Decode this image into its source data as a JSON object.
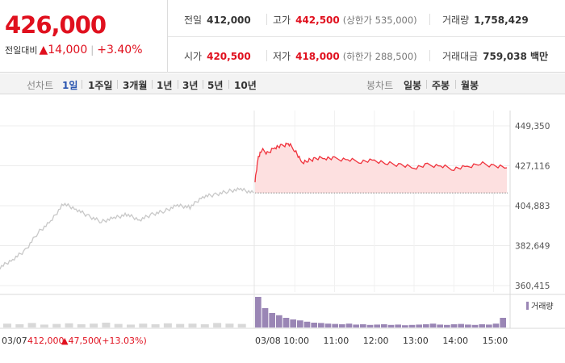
{
  "quote": {
    "price": "426,000",
    "change_label": "전일대비",
    "change_amount": "▲14,000",
    "change_percent": "+3.40%",
    "prev_close_label": "전일",
    "prev_close": "412,000",
    "high_label": "고가",
    "high": "442,500",
    "upper_limit": "(상한가 535,000)",
    "volume_label": "거래량",
    "volume": "1,758,429",
    "open_label": "시가",
    "open": "420,500",
    "low_label": "저가",
    "low": "418,000",
    "lower_limit": "(하한가 288,500)",
    "amount_label": "거래대금",
    "amount": "759,038 백만"
  },
  "toolbar": {
    "line_label": "선차트",
    "periods": [
      "1일",
      "1주일",
      "3개월",
      "1년",
      "3년",
      "5년",
      "10년"
    ],
    "candle_label": "봉차트",
    "candles": [
      "일봉",
      "주봉",
      "월봉"
    ]
  },
  "prev_day_info": {
    "date": "03/07",
    "price": "412,000",
    "change": "▲47,500",
    "percent": "(+13.03%)"
  },
  "volume_legend": "거래량",
  "colors": {
    "up": "#e0101e",
    "line_today": "#f0323c",
    "fill_today": "#fde0e0",
    "line_prev": "#c8c8c8",
    "volume": "#9a86b5"
  },
  "chart_data": {
    "type": "line",
    "y_ticks": [
      449350,
      427116,
      404883,
      382649,
      360415
    ],
    "ylim": [
      360415,
      449350
    ],
    "x_labels": [
      "03/07",
      "03/08",
      "10:00",
      "11:00",
      "12:00",
      "13:00",
      "14:00",
      "15:00"
    ],
    "reference_price": 412000,
    "series": [
      {
        "date": "03/07",
        "x": [
          0,
          0.05,
          0.1,
          0.15,
          0.2,
          0.25,
          0.3,
          0.35,
          0.4,
          0.45,
          0.5,
          0.55,
          0.6,
          0.65,
          0.7,
          0.75,
          0.8,
          0.85,
          0.9,
          0.95,
          1.0
        ],
        "y": [
          370500,
          375000,
          380000,
          390000,
          396000,
          406000,
          403000,
          399000,
          396000,
          398000,
          400000,
          397000,
          400000,
          402000,
          405000,
          404000,
          410000,
          411000,
          413000,
          414000,
          412000
        ]
      },
      {
        "date": "03/08",
        "time": [
          "09:00",
          "09:05",
          "09:10",
          "09:20",
          "09:30",
          "09:40",
          "09:50",
          "10:00",
          "10:10",
          "10:20",
          "10:30",
          "10:45",
          "11:00",
          "11:20",
          "11:40",
          "12:00",
          "12:20",
          "12:40",
          "13:00",
          "13:20",
          "13:40",
          "14:00",
          "14:20",
          "14:40",
          "15:00",
          "15:20"
        ],
        "y": [
          419000,
          432000,
          436000,
          434000,
          437500,
          438000,
          439500,
          436000,
          429000,
          430000,
          431000,
          431500,
          431000,
          430500,
          429500,
          430000,
          428500,
          427500,
          426000,
          427500,
          427000,
          425500,
          426500,
          428500,
          427000,
          426000
        ]
      }
    ],
    "volume": {
      "03/07": [
        12,
        10,
        14,
        9,
        11,
        13,
        10,
        12,
        15,
        11,
        9,
        12,
        10,
        13,
        11,
        12,
        10,
        14,
        12,
        11
      ],
      "03/08": [
        95,
        60,
        45,
        38,
        30,
        25,
        22,
        18,
        15,
        14,
        12,
        11,
        10,
        12,
        9,
        10,
        8,
        9,
        10,
        8,
        9,
        7,
        8,
        9,
        10,
        12,
        9,
        8,
        10,
        11,
        9,
        8,
        10,
        9,
        12,
        30
      ]
    }
  }
}
